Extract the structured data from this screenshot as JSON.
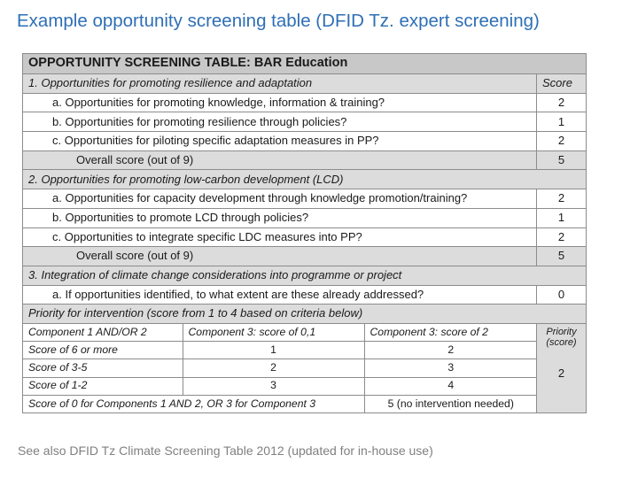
{
  "slide_title": "Example opportunity screening table (DFID Tz. expert screening)",
  "table": {
    "title": "OPPORTUNITY SCREENING TABLE: BAR Education",
    "score_header": "Score",
    "sections": [
      {
        "heading": "1. Opportunities for promoting resilience and adaptation",
        "items": [
          {
            "label": "a. Opportunities for promoting knowledge, information & training?",
            "score": "2"
          },
          {
            "label": "b. Opportunities for promoting resilience through policies?",
            "score": "1"
          },
          {
            "label": "c. Opportunities for piloting specific adaptation measures in PP?",
            "score": "2"
          }
        ],
        "overall": {
          "label": "Overall score (out of 9)",
          "score": "5"
        }
      },
      {
        "heading": "2. Opportunities for promoting low-carbon development (LCD)",
        "items": [
          {
            "label": "a. Opportunities for capacity development through knowledge promotion/training?",
            "score": "2"
          },
          {
            "label": "b. Opportunities to promote LCD through policies?",
            "score": "1"
          },
          {
            "label": "c. Opportunities to integrate specific LDC measures into PP?",
            "score": "2"
          }
        ],
        "overall": {
          "label": "Overall score (out of 9)",
          "score": "5"
        }
      },
      {
        "heading": "3. Integration of climate change considerations into programme or project",
        "items": [
          {
            "label": "a. If opportunities identified, to what extent are these already addressed?",
            "score": "0"
          }
        ]
      }
    ],
    "priority": {
      "heading": "Priority for intervention (score from 1 to 4 based on criteria below)",
      "columns": [
        "Component 1 AND/OR 2",
        "Component 3: score of 0,1",
        "Component 3: score of 2"
      ],
      "rows": [
        [
          "Score of 6 or more",
          "1",
          "2"
        ],
        [
          "Score of 3-5",
          "2",
          "3"
        ],
        [
          "Score of 1-2",
          "3",
          "4"
        ]
      ],
      "last_row": {
        "label": "Score of 0 for Components 1 AND 2, OR 3 for Component 3",
        "value": "5 (no intervention needed)"
      },
      "priority_label": "Priority (score)",
      "priority_value": "2"
    }
  },
  "footnote": "See also DFID Tz Climate Screening Table 2012 (updated for in-house use)"
}
